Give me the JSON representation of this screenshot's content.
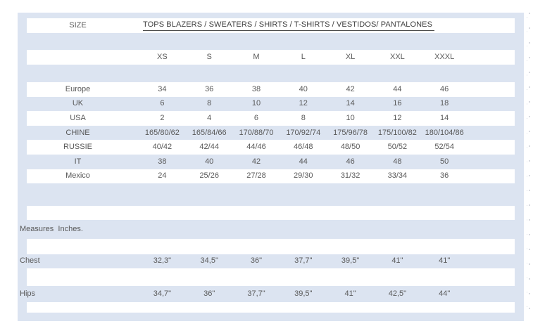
{
  "page": {
    "background_color": "#ffffff"
  },
  "table": {
    "panel_color": "#dce4f1",
    "stripe_color": "#ffffff",
    "text_color": "#595959",
    "title_color": "#404040",
    "header": {
      "size_label": "SIZE",
      "title": "TOPS BLAZERS / SWEATERS / SHIRTS / T-SHIRTS / VESTIDOS/ PANTALONES"
    },
    "size_columns": [
      "XS",
      "S",
      "M",
      "L",
      "XL",
      "XXL",
      "XXXL"
    ],
    "region_rows": [
      {
        "label": "Europe",
        "values": [
          "34",
          "36",
          "38",
          "40",
          "42",
          "44",
          "46"
        ]
      },
      {
        "label": "UK",
        "values": [
          "6",
          "8",
          "10",
          "12",
          "14",
          "16",
          "18"
        ]
      },
      {
        "label": "USA",
        "values": [
          "2",
          "4",
          "6",
          "8",
          "10",
          "12",
          "14"
        ]
      },
      {
        "label": "CHINE",
        "values": [
          "165/80/62",
          "165/84/66",
          "170/88/70",
          "170/92/74",
          "175/96/78",
          "175/100/82",
          "180/104/86"
        ]
      },
      {
        "label": "RUSSIE",
        "values": [
          "40/42",
          "42/44",
          "44/46",
          "46/48",
          "48/50",
          "50/52",
          "52/54"
        ]
      },
      {
        "label": "IT",
        "values": [
          "38",
          "40",
          "42",
          "44",
          "46",
          "48",
          "50"
        ]
      },
      {
        "label": "Mexico",
        "values": [
          "24",
          "25/26",
          "27/28",
          "29/30",
          "31/32",
          "33/34",
          "36"
        ]
      }
    ],
    "measures_section_label": "Measures  Inches.",
    "measure_rows": [
      {
        "label": "Chest",
        "values": [
          "32,3\"",
          "34,5\"",
          "36\"",
          "37,7\"",
          "39,5\"",
          "41\"",
          "41\""
        ]
      },
      {
        "label": "Hips",
        "values": [
          "34,7\"",
          "36\"",
          "37,7\"",
          "39,5\"",
          "41\"",
          "42,5\"",
          "44\""
        ]
      }
    ]
  }
}
